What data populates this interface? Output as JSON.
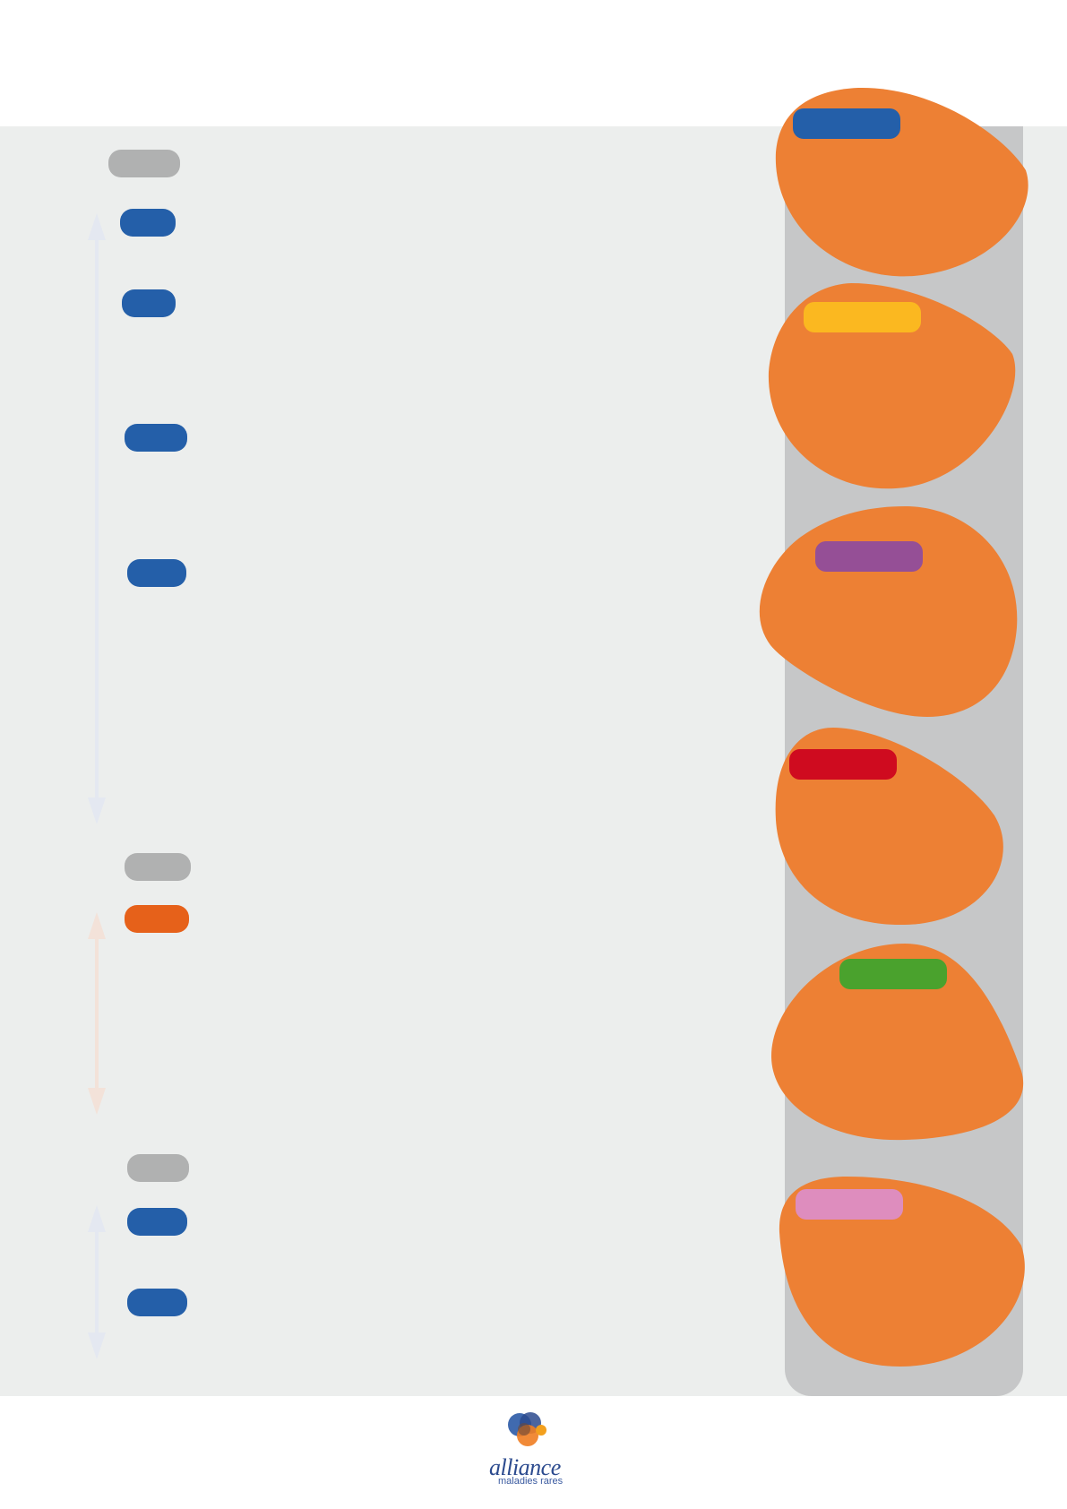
{
  "logo": {
    "word": "alliance",
    "subtitle": "maladies rares"
  },
  "colors": {
    "panel": "#eceeed",
    "rail": "#c6c7c8",
    "blob": "#ed8034",
    "grey_tag": "#b0b1b1",
    "blue_tag": "#245fa9",
    "orange_tag": "#e6611a"
  },
  "left_tags": [
    {
      "group": 1,
      "color": "grey"
    },
    {
      "group": 1,
      "color": "blue"
    },
    {
      "group": 1,
      "color": "blue"
    },
    {
      "group": 1,
      "color": "blue"
    },
    {
      "group": 1,
      "color": "blue"
    },
    {
      "group": 2,
      "color": "grey"
    },
    {
      "group": 2,
      "color": "orange"
    },
    {
      "group": 3,
      "color": "grey"
    },
    {
      "group": 3,
      "color": "blue"
    },
    {
      "group": 3,
      "color": "blue"
    }
  ],
  "blob_tags": [
    "#245fa9",
    "#fbb820",
    "#954f96",
    "#cf0b1f",
    "#4aa22d",
    "#de8dbe"
  ]
}
